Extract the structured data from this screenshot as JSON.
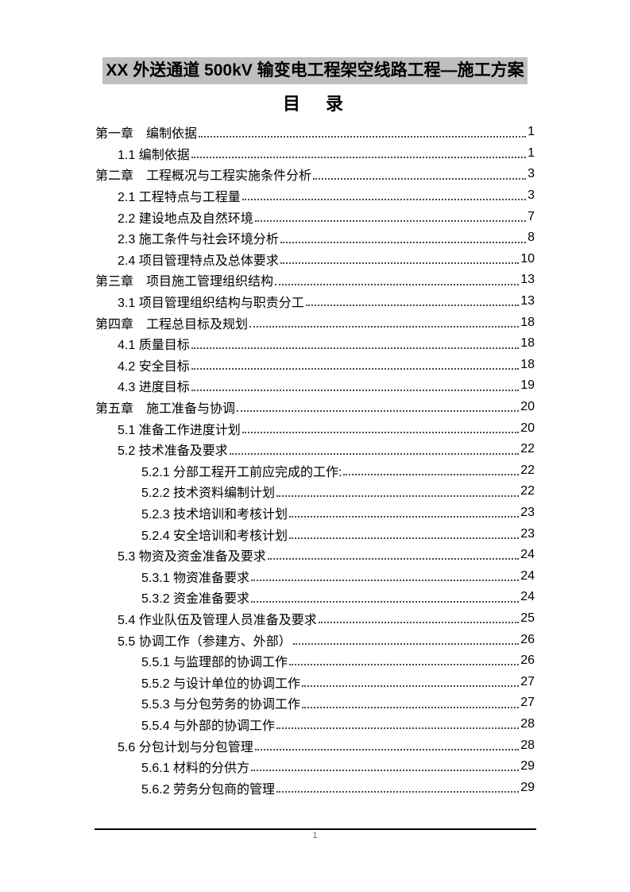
{
  "document": {
    "title": "XX 外送通道 500kV 输变电工程架空线路工程—施工方案",
    "toc_heading": "目　录",
    "footer": {
      "page_number": "1"
    }
  },
  "colors": {
    "title_highlight": "#bfbfbf",
    "body_text": "#000000",
    "leader_dots": "#4a4a4a",
    "footer_line": "#000000",
    "footer_page_number": "#6b6b6b"
  },
  "toc": {
    "entries": [
      {
        "level": 1,
        "label": "第一章　编制依据",
        "page": "1"
      },
      {
        "level": 2,
        "label": "1.1 编制依据",
        "page": "1"
      },
      {
        "level": 1,
        "label": "第二章　工程概况与工程实施条件分析",
        "page": "3"
      },
      {
        "level": 2,
        "label": "2.1 工程特点与工程量",
        "page": "3"
      },
      {
        "level": 2,
        "label": "2.2 建设地点及自然环境",
        "page": "7"
      },
      {
        "level": 2,
        "label": "2.3 施工条件与社会环境分析",
        "page": "8"
      },
      {
        "level": 2,
        "label": "2.4 项目管理特点及总体要求",
        "page": "10"
      },
      {
        "level": 1,
        "label": "第三章　项目施工管理组织结构",
        "page": "13"
      },
      {
        "level": 2,
        "label": "3.1 项目管理组织结构与职责分工",
        "page": "13"
      },
      {
        "level": 1,
        "label": "第四章　工程总目标及规划",
        "page": "18"
      },
      {
        "level": 2,
        "label": "4.1 质量目标",
        "page": "18"
      },
      {
        "level": 2,
        "label": "4.2 安全目标",
        "page": "18"
      },
      {
        "level": 2,
        "label": "4.3 进度目标",
        "page": "19"
      },
      {
        "level": 1,
        "label": "第五章　施工准备与协调",
        "page": "20"
      },
      {
        "level": 2,
        "label": "5.1 准备工作进度计划",
        "page": "20"
      },
      {
        "level": 2,
        "label": "5.2 技术准备及要求",
        "page": "22"
      },
      {
        "level": 3,
        "label": "5.2.1 分部工程开工前应完成的工作:",
        "page": "22"
      },
      {
        "level": 3,
        "label": "5.2.2 技术资料编制计划",
        "page": "22"
      },
      {
        "level": 3,
        "label": "5.2.3 技术培训和考核计划",
        "page": "23"
      },
      {
        "level": 3,
        "label": "5.2.4 安全培训和考核计划",
        "page": "23"
      },
      {
        "level": 2,
        "label": "5.3 物资及资金准备及要求",
        "page": "24"
      },
      {
        "level": 3,
        "label": "5.3.1 物资准备要求",
        "page": "24"
      },
      {
        "level": 3,
        "label": "5.3.2 资金准备要求",
        "page": "24"
      },
      {
        "level": 2,
        "label": "5.4 作业队伍及管理人员准备及要求",
        "page": "25"
      },
      {
        "level": 2,
        "label": "5.5 协调工作（参建方、外部）",
        "page": "26"
      },
      {
        "level": 3,
        "label": "5.5.1 与监理部的协调工作",
        "page": "26"
      },
      {
        "level": 3,
        "label": "5.5.2 与设计单位的协调工作",
        "page": "27"
      },
      {
        "level": 3,
        "label": "5.5.3 与分包劳务的协调工作",
        "page": "27"
      },
      {
        "level": 3,
        "label": "5.5.4 与外部的协调工作",
        "page": "28"
      },
      {
        "level": 2,
        "label": "5.6 分包计划与分包管理",
        "page": "28"
      },
      {
        "level": 3,
        "label": "5.6.1 材料的分供方",
        "page": "29"
      },
      {
        "level": 3,
        "label": "5.6.2 劳务分包商的管理",
        "page": "29"
      }
    ]
  }
}
